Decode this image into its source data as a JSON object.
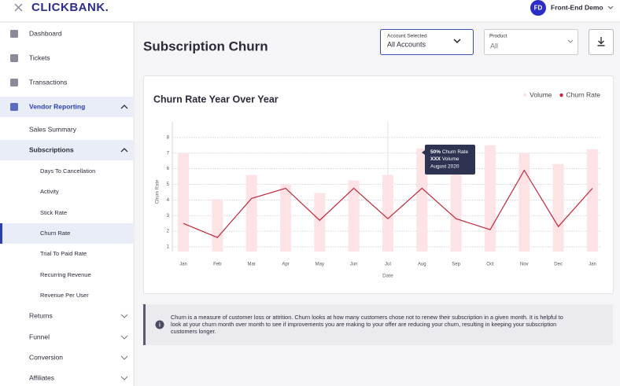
{
  "header": {
    "logo": "CLICKBANK.",
    "avatar": "FD",
    "user": "Front-End Demo"
  },
  "sidebar": [
    "Dashboard",
    "Tickets",
    "Transactions",
    "Vendor Reporting",
    "Sales Summary",
    "Subscriptions",
    "Days To Cancellation",
    "Activity",
    "Stick Rate",
    "Churn Rate",
    "Trial To Paid Rate",
    "Recurring Revenue",
    "Revenue Per User",
    "Returns",
    "Funnel",
    "Conversion",
    "Affiliates"
  ],
  "page": {
    "title": "Subscription Churn",
    "account": {
      "label": "Account Selected",
      "value": "All Accounts"
    },
    "product": {
      "label": "Product",
      "value": "All"
    }
  },
  "chart_data": {
    "type": "bar_line",
    "title": "Churn Rate Year Over Year",
    "categories": [
      "Jan",
      "Feb",
      "Mar",
      "Apr",
      "May",
      "Jun",
      "Jul",
      "Aug",
      "Sep",
      "Oct",
      "Nov",
      "Dec",
      "Jan"
    ],
    "series": [
      {
        "name": "Volume",
        "color": "#fde3e6",
        "type": "bar",
        "values": [
          7.0,
          4.05,
          5.6,
          5.0,
          4.45,
          5.25,
          5.6,
          7.3,
          7.2,
          7.5,
          7.0,
          6.3,
          7.25
        ]
      },
      {
        "name": "Churn Rate",
        "color": "#c0283a",
        "type": "line",
        "values": [
          2.5,
          1.6,
          4.1,
          4.75,
          2.7,
          4.75,
          2.8,
          4.75,
          2.8,
          2.1,
          5.9,
          2.3,
          4.75
        ]
      }
    ],
    "ylim": [
      0.7,
      9
    ],
    "yticks": [
      1,
      2,
      3,
      4,
      5,
      6,
      7,
      8
    ],
    "grid": true,
    "legend": "top-right",
    "x_label": "Date",
    "y_label": "Churn Rate",
    "tooltip": {
      "rate": "50%",
      "rate_label": "Churn Rate",
      "volume": "XXX",
      "volume_label": "Volume",
      "date": "August 2020"
    }
  },
  "info": {
    "lines": [
      "Churn is a measure of customer loss or attrition. Churn looks at how many customers chose not to renew their subscription in a given month. It is helpful to",
      "look at your churn month over month to see if improvements you are making to your offer are reducing your churn, resulting in keeping your subscription",
      "customers longer."
    ]
  }
}
